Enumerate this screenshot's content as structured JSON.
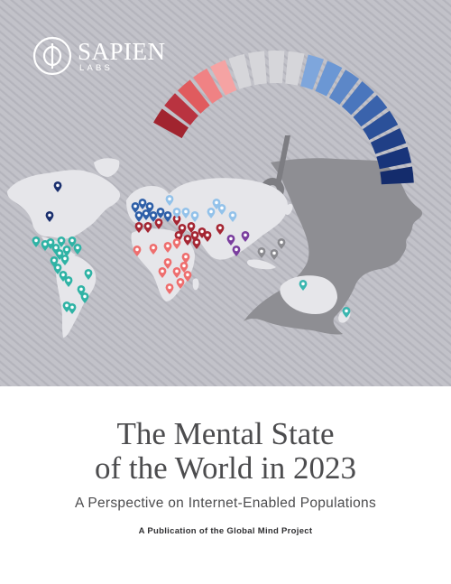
{
  "logo": {
    "name": "SAPIEN",
    "sub": "LABS"
  },
  "title": {
    "line1": "The Mental State",
    "line2": "of the World in 2023"
  },
  "subtitle": "A Perspective on Internet-Enabled Populations",
  "publication": "A Publication of the Global Mind Project",
  "colors": {
    "background_gray": "#bdbdc4",
    "head_silhouette": "#8d8d92",
    "world_map": "#e6e6ea",
    "gauge_red": "#ef6a6a",
    "gauge_gray": "#d3d3d7",
    "gauge_light_blue": "#7fa6da",
    "gauge_dark_blue": "#1e3f86",
    "title_text": "#4c4c4e"
  },
  "icons": [
    "sapien-labs-logo-icon",
    "map-pin-icon",
    "gauge-needle-icon",
    "head-profile-icon"
  ]
}
